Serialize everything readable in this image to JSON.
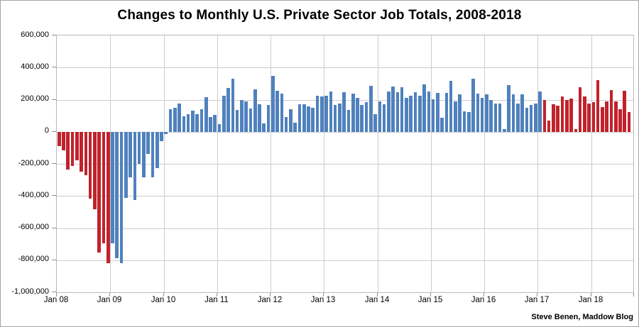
{
  "attribution": "Steve Benen, Maddow Blog",
  "chart_data": {
    "type": "bar",
    "title": "Changes to Monthly U.S. Private Sector Job Totals, 2008-2018",
    "grid": true,
    "legend": "none",
    "x_axis": {
      "start_month": "Jan 2008",
      "end_month": "Sep 2018",
      "tick_labels": [
        "Jan 08",
        "Jan 09",
        "Jan 10",
        "Jan 11",
        "Jan 12",
        "Jan 13",
        "Jan 14",
        "Jan 15",
        "Jan 16",
        "Jan 17",
        "Jan 18"
      ],
      "tick_month_offsets": [
        0,
        12,
        24,
        36,
        48,
        60,
        72,
        84,
        96,
        108,
        120
      ]
    },
    "y_axis": {
      "range": [
        -1000000,
        600000
      ],
      "step": 200000,
      "tick_values": [
        600000,
        400000,
        200000,
        0,
        -200000,
        -400000,
        -600000,
        -800000,
        -1000000
      ],
      "tick_labels": [
        "600,000",
        "400,000",
        "200,000",
        "0",
        "-200,000",
        "-400,000",
        "-600,000",
        "-800,000",
        "-1,000,000"
      ]
    },
    "bar_color_segments": [
      {
        "from": 0,
        "to": 11,
        "color": "#c1222b"
      },
      {
        "from": 12,
        "to": 108,
        "color": "#4f81bd"
      },
      {
        "from": 109,
        "to": 128,
        "color": "#c1222b"
      }
    ],
    "series": [
      {
        "name": "monthly_private_sector_job_change",
        "values": [
          -90000,
          -115000,
          -235000,
          -212000,
          -180000,
          -250000,
          -270000,
          -417000,
          -483000,
          -753000,
          -695000,
          -819000,
          -695000,
          -788000,
          -817000,
          -414000,
          -285000,
          -425000,
          -200000,
          -285000,
          -140000,
          -285000,
          -225000,
          -60000,
          -15000,
          140000,
          150000,
          175000,
          95000,
          110000,
          130000,
          110000,
          140000,
          215000,
          90000,
          105000,
          48000,
          224000,
          275000,
          331000,
          136000,
          199000,
          190000,
          143000,
          264000,
          173000,
          50000,
          166000,
          350000,
          255000,
          240000,
          90000,
          140000,
          55000,
          170000,
          170000,
          160000,
          150000,
          225000,
          220000,
          225000,
          250000,
          165000,
          175000,
          245000,
          135000,
          240000,
          210000,
          165000,
          185000,
          285000,
          110000,
          188000,
          171000,
          250000,
          284000,
          247000,
          279000,
          210000,
          225000,
          247000,
          225000,
          294000,
          250000,
          203000,
          244000,
          88000,
          243000,
          316000,
          191000,
          232000,
          129000,
          122000,
          332000,
          240000,
          210000,
          232000,
          196000,
          174000,
          174000,
          15000,
          291000,
          232000,
          174000,
          235000,
          151000,
          166000,
          176000,
          250000,
          200000,
          68000,
          171000,
          162000,
          221000,
          196000,
          207000,
          16000,
          276000,
          218000,
          174000,
          185000,
          320000,
          156000,
          191000,
          262000,
          191000,
          140000,
          254000,
          122000
        ]
      }
    ]
  }
}
